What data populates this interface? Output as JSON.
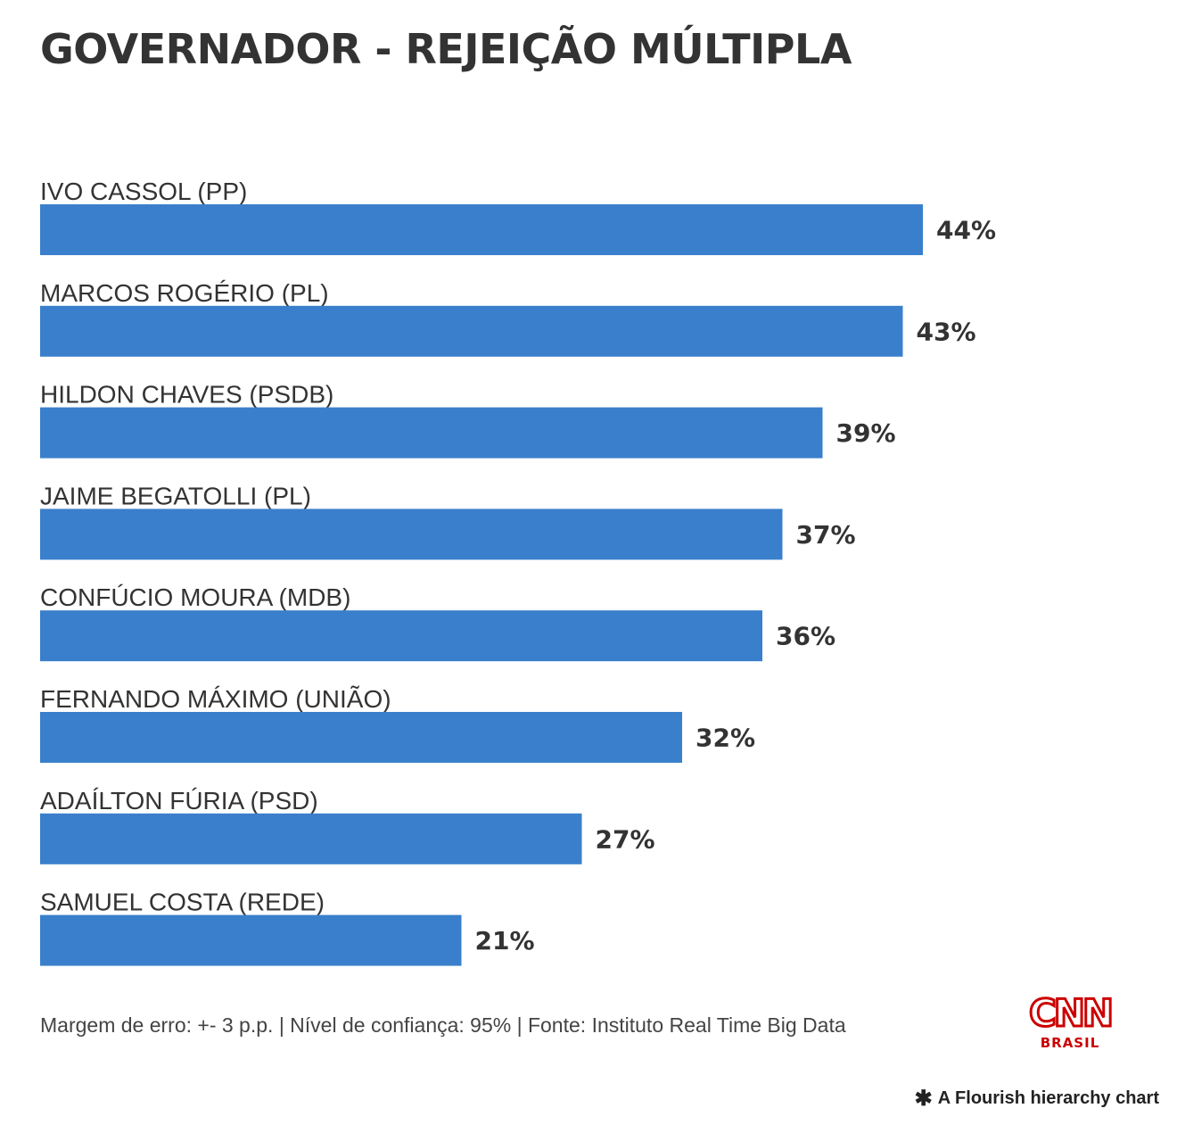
{
  "title": "GOVERNADOR - REJEIÇÃO MÚLTIPLA",
  "chart_data": {
    "type": "bar",
    "orientation": "horizontal",
    "title": "GOVERNADOR - REJEIÇÃO MÚLTIPLA",
    "categories": [
      "IVO CASSOL (PP)",
      "MARCOS ROGÉRIO (PL)",
      "HILDON CHAVES (PSDB)",
      "JAIME BEGATOLLI (PL)",
      "CONFÚCIO MOURA (MDB)",
      "FERNANDO MÁXIMO (UNIÃO)",
      "ADAÍLTON FÚRIA (PSD)",
      "SAMUEL COSTA (REDE)"
    ],
    "values": [
      44,
      43,
      39,
      37,
      36,
      32,
      27,
      21
    ],
    "value_labels": [
      "44%",
      "43%",
      "39%",
      "37%",
      "36%",
      "32%",
      "27%",
      "21%"
    ],
    "unit": "%",
    "xlabel": "",
    "ylabel": "",
    "grid": false,
    "bar_color": "#3a7fcc"
  },
  "footer": {
    "note": "Margem de erro: +- 3 p.p. | Nível de confiança: 95% | Fonte: Instituto Real Time Big Data",
    "logo_text": "CNN",
    "logo_sub": "BRASIL",
    "logo_color": "#cc0000",
    "credit": "A Flourish hierarchy chart"
  }
}
